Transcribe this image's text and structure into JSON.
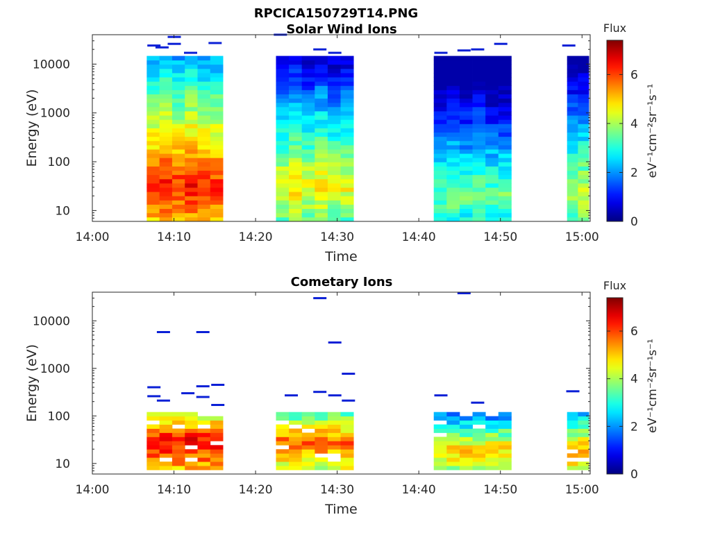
{
  "figure_title": "RPCICA150729T14.PNG",
  "chart_data": [
    {
      "type": "heatmap",
      "title": "Solar Wind Ions",
      "xlabel": "Time",
      "ylabel": "Energy (eV)",
      "yscale": "log",
      "ylim": [
        6,
        40000
      ],
      "xlim": [
        "14:00",
        "15:01"
      ],
      "x_ticks": [
        "14:00",
        "14:10",
        "14:20",
        "14:30",
        "14:40",
        "14:50",
        "15:00"
      ],
      "y_ticks": [
        "10",
        "100",
        "1000",
        "10000"
      ],
      "colorbar": {
        "label": "Flux",
        "units": "eV⁻¹cm⁻²sr⁻¹s⁻¹",
        "range": [
          0,
          7.4
        ],
        "ticks": [
          "0",
          "2",
          "4",
          "6"
        ],
        "colormap": "jet"
      },
      "intervals": [
        {
          "start": "14:06:40",
          "end": "14:16:00",
          "columns": 6,
          "max_energy": 15000,
          "peak_energy": 30,
          "peak_flux": 6.2
        },
        {
          "start": "14:22:30",
          "end": "14:32:00",
          "columns": 6,
          "max_energy": 15000,
          "peak_energy": 30,
          "peak_flux": 4.6
        },
        {
          "start": "14:41:50",
          "end": "14:51:20",
          "columns": 6,
          "max_energy": 15000,
          "peak_energy": 20,
          "peak_flux": 3.6
        },
        {
          "start": "14:58:10",
          "end": "15:00:50",
          "columns": 2,
          "max_energy": 14000,
          "peak_energy": 20,
          "peak_flux": 4.2
        }
      ],
      "sparse_highs": [
        {
          "t": "14:07:30",
          "e": 24000
        },
        {
          "t": "14:08:30",
          "e": 22000
        },
        {
          "t": "14:10:00",
          "e": 36000
        },
        {
          "t": "14:10:00",
          "e": 26000
        },
        {
          "t": "14:12:00",
          "e": 17000
        },
        {
          "t": "14:15:00",
          "e": 27000
        },
        {
          "t": "14:23:00",
          "e": 40000
        },
        {
          "t": "14:27:50",
          "e": 20000
        },
        {
          "t": "14:29:40",
          "e": 17000
        },
        {
          "t": "14:42:40",
          "e": 17000
        },
        {
          "t": "14:45:30",
          "e": 19000
        },
        {
          "t": "14:47:10",
          "e": 20000
        },
        {
          "t": "14:50:00",
          "e": 26000
        },
        {
          "t": "14:58:20",
          "e": 24000
        }
      ]
    },
    {
      "type": "heatmap",
      "title": "Cometary Ions",
      "xlabel": "Time",
      "ylabel": "Energy (eV)",
      "yscale": "log",
      "ylim": [
        6,
        40000
      ],
      "xlim": [
        "14:00",
        "15:01"
      ],
      "x_ticks": [
        "14:00",
        "14:10",
        "14:20",
        "14:30",
        "14:40",
        "14:50",
        "15:00"
      ],
      "y_ticks": [
        "10",
        "100",
        "1000",
        "10000"
      ],
      "colorbar": {
        "label": "Flux",
        "units": "eV⁻¹cm⁻²sr⁻¹s⁻¹",
        "range": [
          0,
          7.4
        ],
        "ticks": [
          "0",
          "2",
          "4",
          "6"
        ],
        "colormap": "jet"
      },
      "intervals": [
        {
          "start": "14:06:40",
          "end": "14:16:00",
          "columns": 6,
          "max_energy": 130,
          "peak_energy": 30,
          "peak_flux": 6.6
        },
        {
          "start": "14:22:30",
          "end": "14:32:00",
          "columns": 6,
          "max_energy": 130,
          "peak_energy": 30,
          "peak_flux": 5.8
        },
        {
          "start": "14:41:50",
          "end": "14:51:20",
          "columns": 6,
          "max_energy": 130,
          "peak_energy": 20,
          "peak_flux": 5.0
        },
        {
          "start": "14:58:10",
          "end": "15:00:50",
          "columns": 2,
          "max_energy": 110,
          "peak_energy": 20,
          "peak_flux": 5.4
        }
      ],
      "sparse_highs": [
        {
          "t": "14:07:30",
          "e": 400
        },
        {
          "t": "14:07:30",
          "e": 260
        },
        {
          "t": "14:08:40",
          "e": 5800
        },
        {
          "t": "14:08:40",
          "e": 210
        },
        {
          "t": "14:11:40",
          "e": 300
        },
        {
          "t": "14:13:30",
          "e": 5800
        },
        {
          "t": "14:13:30",
          "e": 420
        },
        {
          "t": "14:13:30",
          "e": 250
        },
        {
          "t": "14:15:20",
          "e": 450
        },
        {
          "t": "14:15:20",
          "e": 170
        },
        {
          "t": "14:24:20",
          "e": 270
        },
        {
          "t": "14:27:50",
          "e": 30000
        },
        {
          "t": "14:27:50",
          "e": 320
        },
        {
          "t": "14:29:40",
          "e": 3500
        },
        {
          "t": "14:29:40",
          "e": 270
        },
        {
          "t": "14:31:20",
          "e": 770
        },
        {
          "t": "14:31:20",
          "e": 210
        },
        {
          "t": "14:42:40",
          "e": 270
        },
        {
          "t": "14:45:30",
          "e": 38000
        },
        {
          "t": "14:47:10",
          "e": 190
        },
        {
          "t": "14:58:50",
          "e": 330
        }
      ]
    }
  ]
}
